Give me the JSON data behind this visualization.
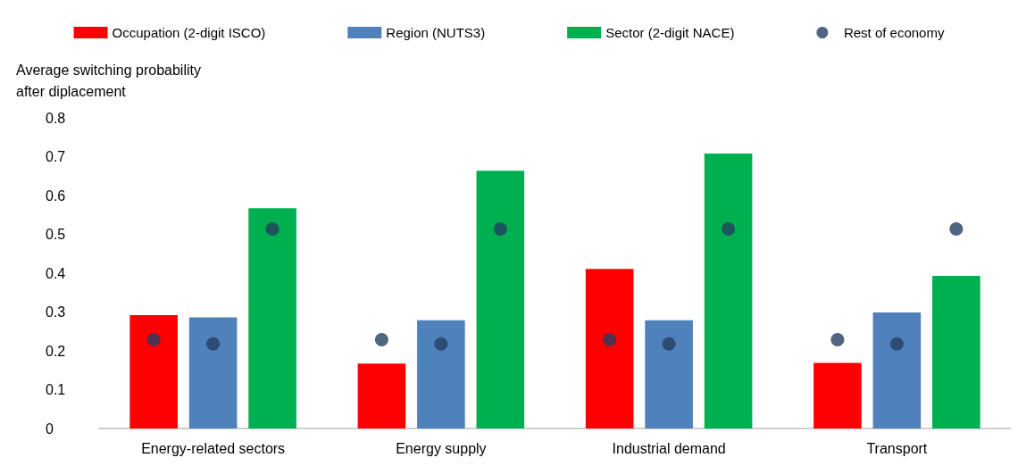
{
  "chart_data": {
    "type": "bar",
    "ylabel": "Average switching probability after diplacement",
    "categories": [
      "Energy-related sectors",
      "Energy supply",
      "Industrial demand",
      "Transport"
    ],
    "series": [
      {
        "name": "Occupation (2-digit ISCO)",
        "color": "#ff0000",
        "values": [
          0.292,
          0.167,
          0.411,
          0.169
        ]
      },
      {
        "name": "Region (NUTS3)",
        "color": "#4f81bd",
        "values": [
          0.286,
          0.279,
          0.279,
          0.299
        ]
      },
      {
        "name": "Sector (2-digit NACE)",
        "color": "#00b050",
        "values": [
          0.567,
          0.664,
          0.708,
          0.393
        ]
      },
      {
        "name": "Rest of economy",
        "type": "scatter",
        "color": "#243f60",
        "x": [
          "Energy-related sectors",
          "Energy-related sectors",
          "Energy-related sectors",
          "Energy supply",
          "Energy supply",
          "Energy supply",
          "Industrial demand",
          "Industrial demand",
          "Industrial demand",
          "Transport",
          "Transport",
          "Transport"
        ],
        "values": [
          0.229,
          0.218,
          0.514,
          0.229,
          0.218,
          0.514,
          0.229,
          0.218,
          0.514,
          0.229,
          0.218,
          0.514
        ]
      }
    ],
    "ylim": [
      0,
      0.8
    ],
    "yticks": [
      0,
      0.1,
      0.2,
      0.3,
      0.4,
      0.5,
      0.6,
      0.7,
      0.8
    ],
    "grid": false,
    "legend": "top",
    "marker": "circle"
  }
}
